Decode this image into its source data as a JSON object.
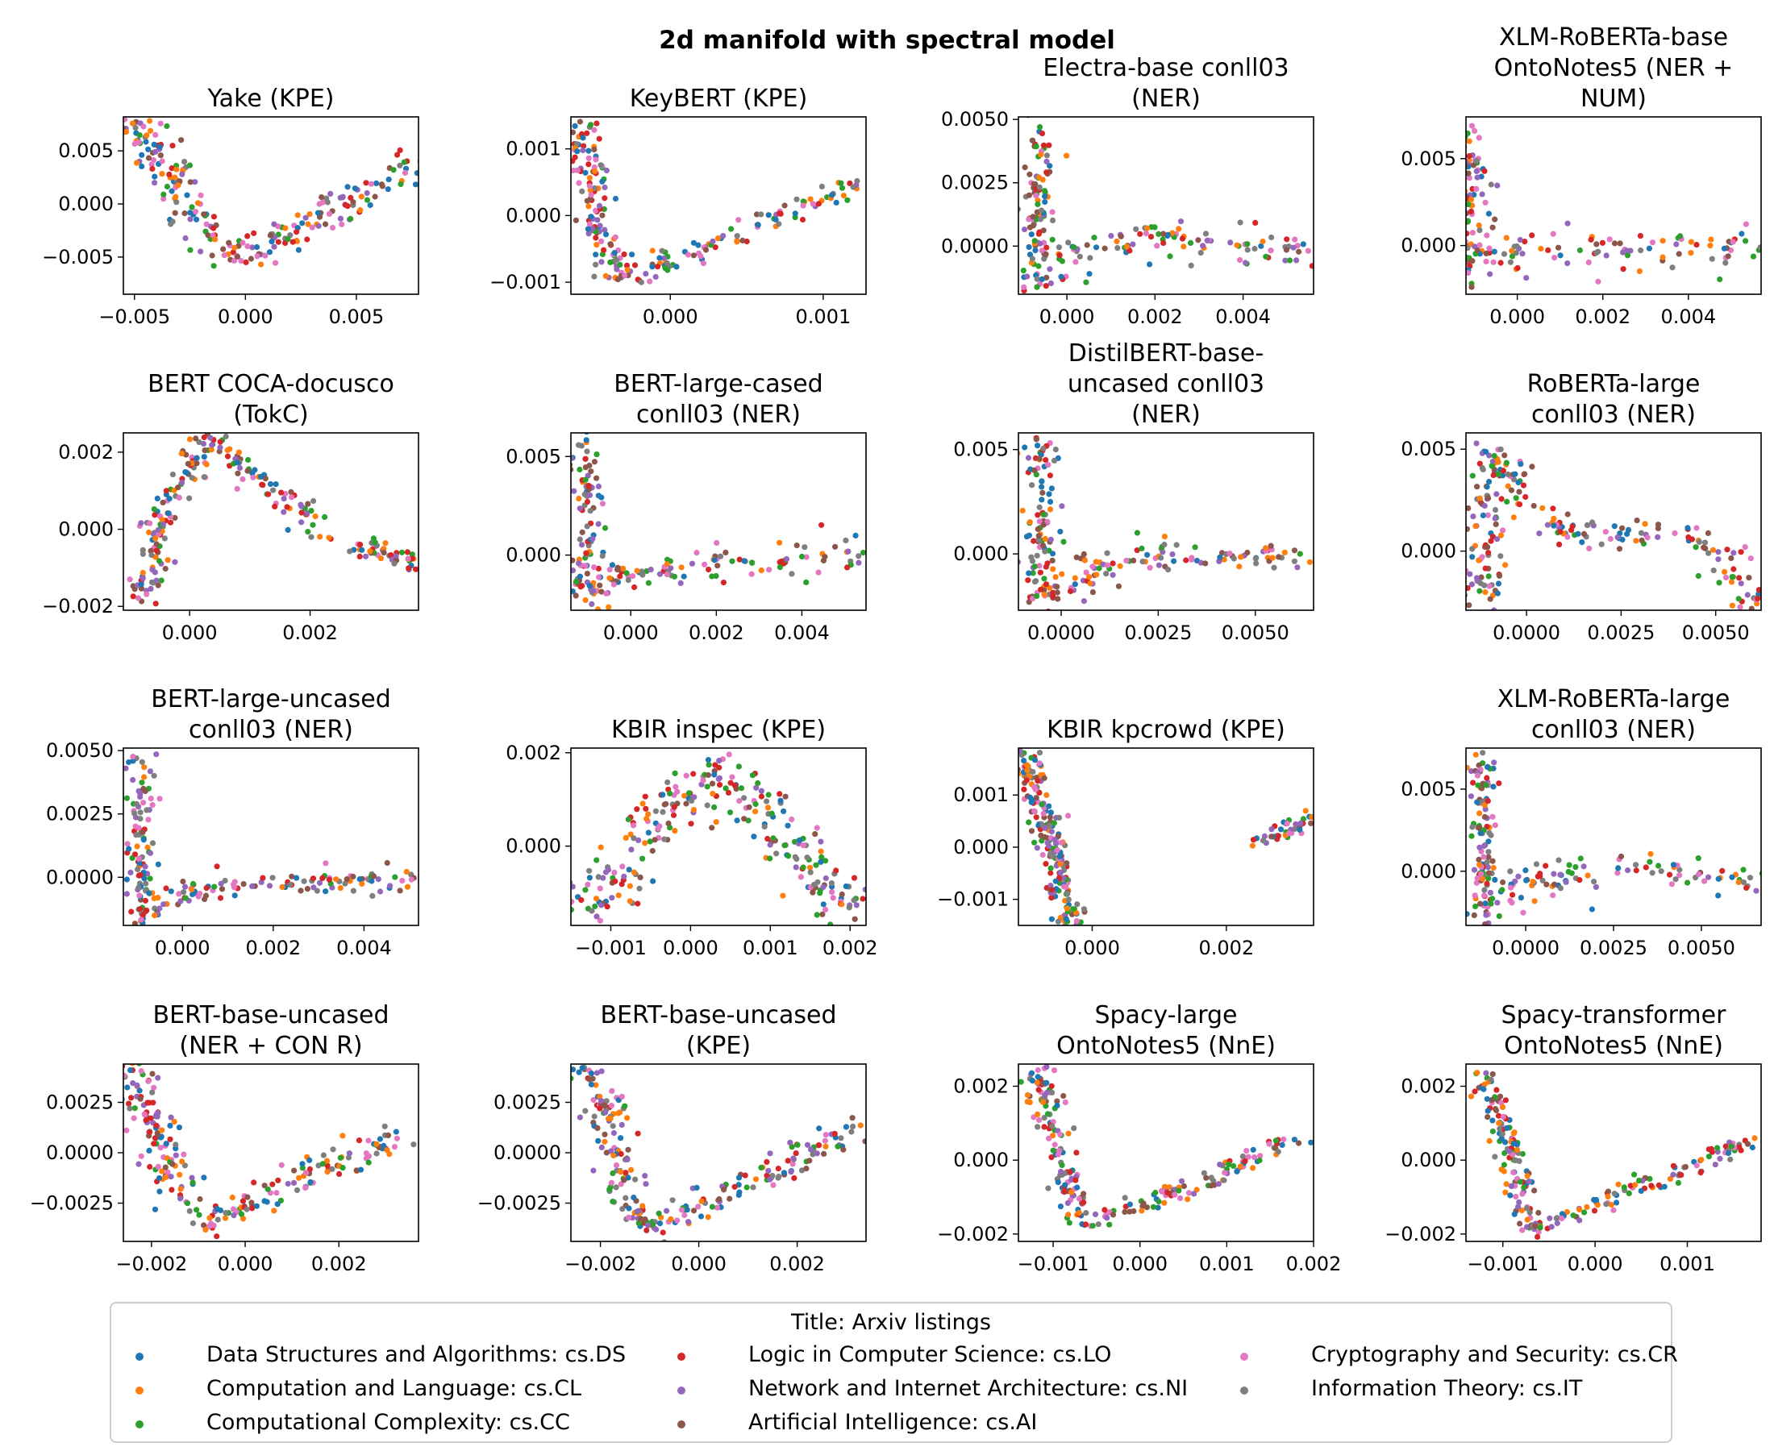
{
  "figure_title": "2d manifold with spectral model",
  "legend": {
    "title": "Title: Arxiv listings",
    "entries": [
      {
        "label": "Data Structures and Algorithms: cs.DS",
        "color": "#1f77b4"
      },
      {
        "label": "Computation and Language: cs.CL",
        "color": "#ff7f0e"
      },
      {
        "label": "Computational Complexity: cs.CC",
        "color": "#2ca02c"
      },
      {
        "label": "Logic in Computer Science: cs.LO",
        "color": "#d62728"
      },
      {
        "label": "Network and Internet Architecture: cs.NI",
        "color": "#9467bd"
      },
      {
        "label": "Artificial Intelligence: cs.AI",
        "color": "#8c564b"
      },
      {
        "label": "Cryptography and Security: cs.CR",
        "color": "#e377c2"
      },
      {
        "label": "Information Theory: cs.IT",
        "color": "#7f7f7f"
      }
    ]
  },
  "chart_data": [
    {
      "type": "scatter",
      "title": [
        "Yake (KPE)"
      ],
      "shape": "v",
      "xlim": [
        -0.0055,
        0.0078
      ],
      "ylim": [
        -0.0085,
        0.0082
      ],
      "xticks": [
        {
          "v": -0.005,
          "l": "−0.005"
        },
        {
          "v": 0.0,
          "l": "0.000"
        },
        {
          "v": 0.005,
          "l": "0.005"
        }
      ],
      "yticks": [
        {
          "v": -0.005,
          "l": "−0.005"
        },
        {
          "v": 0.0,
          "l": "0.000"
        },
        {
          "v": 0.005,
          "l": "0.005"
        }
      ],
      "path": [
        [
          -0.0052,
          0.0078
        ],
        [
          -0.0025,
          0.0
        ],
        [
          -0.0008,
          -0.0048
        ],
        [
          0.0005,
          -0.0045
        ],
        [
          0.0035,
          -0.001
        ],
        [
          0.0078,
          0.0038
        ]
      ],
      "spread": 0.0012,
      "n": 240
    },
    {
      "type": "scatter",
      "title": [
        "KeyBERT (KPE)"
      ],
      "shape": "v",
      "xlim": [
        -0.00065,
        0.00128
      ],
      "ylim": [
        -0.00118,
        0.00148
      ],
      "xticks": [
        {
          "v": 0.0,
          "l": "0.000"
        },
        {
          "v": 0.001,
          "l": "0.001"
        }
      ],
      "yticks": [
        {
          "v": -0.001,
          "l": "−0.001"
        },
        {
          "v": 0.0,
          "l": "0.000"
        },
        {
          "v": 0.001,
          "l": "0.001"
        }
      ],
      "path": [
        [
          -0.0006,
          0.0014
        ],
        [
          -0.0005,
          0.0003
        ],
        [
          -0.00035,
          -0.0009
        ],
        [
          0.0,
          -0.0007
        ],
        [
          0.0005,
          -0.0002
        ],
        [
          0.0012,
          0.0005
        ]
      ],
      "spread": 0.00012,
      "n": 220
    },
    {
      "type": "scatter",
      "title": [
        "Electra-base conll03",
        "(NER)"
      ],
      "shape": "l",
      "xlim": [
        -0.0011,
        0.0056
      ],
      "ylim": [
        -0.0019,
        0.0051
      ],
      "xticks": [
        {
          "v": 0.0,
          "l": "0.000"
        },
        {
          "v": 0.002,
          "l": "0.002"
        },
        {
          "v": 0.004,
          "l": "0.004"
        }
      ],
      "yticks": [
        {
          "v": 0.0,
          "l": "0.0000"
        },
        {
          "v": 0.0025,
          "l": "0.0025"
        },
        {
          "v": 0.005,
          "l": "0.0050"
        }
      ],
      "path": [
        [
          -0.0007,
          0.005
        ],
        [
          -0.0007,
          -0.0015
        ],
        [
          0.0,
          -0.0005
        ],
        [
          0.002,
          0.0004
        ],
        [
          0.0055,
          -0.0003
        ]
      ],
      "spread": 0.0005,
      "n": 220
    },
    {
      "type": "scatter",
      "title": [
        "XLM-RoBERTa-base",
        "OntoNotes5 (NER +",
        "NUM)"
      ],
      "shape": "l",
      "xlim": [
        -0.0012,
        0.0057
      ],
      "ylim": [
        -0.0028,
        0.0074
      ],
      "xticks": [
        {
          "v": 0.0,
          "l": "0.000"
        },
        {
          "v": 0.002,
          "l": "0.002"
        },
        {
          "v": 0.004,
          "l": "0.004"
        }
      ],
      "yticks": [
        {
          "v": 0.0,
          "l": "0.000"
        },
        {
          "v": 0.005,
          "l": "0.005"
        }
      ],
      "path": [
        [
          -0.0012,
          0.0068
        ],
        [
          -0.0011,
          -0.0018
        ],
        [
          0.0,
          -0.0005
        ],
        [
          0.002,
          0.0
        ],
        [
          0.0055,
          -0.0002
        ]
      ],
      "spread": 0.0006,
      "n": 220
    },
    {
      "type": "scatter",
      "title": [
        "BERT COCA-docusco",
        "(TokC)"
      ],
      "shape": "split",
      "xlim": [
        -0.0011,
        0.0038
      ],
      "ylim": [
        -0.0021,
        0.0025
      ],
      "xticks": [
        {
          "v": 0.0,
          "l": "0.000"
        },
        {
          "v": 0.002,
          "l": "0.002"
        }
      ],
      "yticks": [
        {
          "v": -0.002,
          "l": "−0.002"
        },
        {
          "v": 0.0,
          "l": "0.000"
        },
        {
          "v": 0.002,
          "l": "0.002"
        }
      ],
      "path": [
        [
          -0.0008,
          -0.0021
        ],
        [
          -0.0004,
          0.0005
        ],
        [
          0.0003,
          0.0024
        ],
        [
          0.0022,
          0.0
        ]
      ],
      "path2": [
        [
          0.0028,
          -0.0004
        ],
        [
          0.0038,
          -0.0009
        ]
      ],
      "spread": 0.0003,
      "n": 240
    },
    {
      "type": "scatter",
      "title": [
        "BERT-large-cased",
        "conll03 (NER)"
      ],
      "shape": "l",
      "xlim": [
        -0.0014,
        0.0055
      ],
      "ylim": [
        -0.0028,
        0.0062
      ],
      "xticks": [
        {
          "v": 0.0,
          "l": "0.000"
        },
        {
          "v": 0.002,
          "l": "0.002"
        },
        {
          "v": 0.004,
          "l": "0.004"
        }
      ],
      "yticks": [
        {
          "v": 0.0,
          "l": "0.000"
        },
        {
          "v": 0.005,
          "l": "0.005"
        }
      ],
      "path": [
        [
          -0.001,
          0.0058
        ],
        [
          -0.001,
          -0.0025
        ],
        [
          0.0,
          -0.0008
        ],
        [
          0.0025,
          -0.0004
        ],
        [
          0.0054,
          0.0002
        ]
      ],
      "spread": 0.0005,
      "n": 220
    },
    {
      "type": "scatter",
      "title": [
        "DistilBERT-base-",
        "uncased conll03",
        "(NER)"
      ],
      "shape": "l",
      "xlim": [
        -0.0011,
        0.0065
      ],
      "ylim": [
        -0.0027,
        0.0058
      ],
      "xticks": [
        {
          "v": 0.0,
          "l": "0.0000"
        },
        {
          "v": 0.0025,
          "l": "0.0025"
        },
        {
          "v": 0.005,
          "l": "0.0050"
        }
      ],
      "yticks": [
        {
          "v": 0.0,
          "l": "0.000"
        },
        {
          "v": 0.005,
          "l": "0.005"
        }
      ],
      "path": [
        [
          -0.0005,
          0.0055
        ],
        [
          -0.0005,
          -0.0022
        ],
        [
          0.001,
          -0.0005
        ],
        [
          0.003,
          0.0
        ],
        [
          0.0065,
          -0.0002
        ]
      ],
      "spread": 0.0005,
      "n": 220
    },
    {
      "type": "scatter",
      "title": [
        "RoBERTa-large",
        "conll03 (NER)"
      ],
      "shape": "m",
      "xlim": [
        -0.0016,
        0.0062
      ],
      "ylim": [
        -0.0029,
        0.0058
      ],
      "xticks": [
        {
          "v": 0.0,
          "l": "0.0000"
        },
        {
          "v": 0.0025,
          "l": "0.0025"
        },
        {
          "v": 0.005,
          "l": "0.0050"
        }
      ],
      "yticks": [
        {
          "v": 0.0,
          "l": "0.000"
        },
        {
          "v": 0.005,
          "l": "0.005"
        }
      ],
      "path": [
        [
          -0.0012,
          -0.0027
        ],
        [
          -0.001,
          0.005
        ],
        [
          0.001,
          0.0008
        ],
        [
          0.0045,
          0.0008
        ],
        [
          0.0062,
          -0.0027
        ]
      ],
      "spread": 0.0006,
      "n": 240
    },
    {
      "type": "scatter",
      "title": [
        "BERT-large-uncased",
        "conll03 (NER)"
      ],
      "shape": "l",
      "xlim": [
        -0.0013,
        0.0052
      ],
      "ylim": [
        -0.0019,
        0.0051
      ],
      "xticks": [
        {
          "v": 0.0,
          "l": "0.000"
        },
        {
          "v": 0.002,
          "l": "0.002"
        },
        {
          "v": 0.004,
          "l": "0.004"
        }
      ],
      "yticks": [
        {
          "v": 0.0,
          "l": "0.0000"
        },
        {
          "v": 0.0025,
          "l": "0.0025"
        },
        {
          "v": 0.005,
          "l": "0.0050"
        }
      ],
      "path": [
        [
          -0.0009,
          0.0048
        ],
        [
          -0.0009,
          -0.0018
        ],
        [
          0.0,
          -0.0005
        ],
        [
          0.002,
          -0.0003
        ],
        [
          0.0052,
          0.0
        ]
      ],
      "spread": 0.0004,
      "n": 220
    },
    {
      "type": "scatter",
      "title": [
        "KBIR inspec (KPE)"
      ],
      "shape": "a",
      "xlim": [
        -0.0015,
        0.0022
      ],
      "ylim": [
        -0.0017,
        0.0021
      ],
      "xticks": [
        {
          "v": -0.001,
          "l": "−0.001"
        },
        {
          "v": 0.0,
          "l": "0.000"
        },
        {
          "v": 0.001,
          "l": "0.001"
        },
        {
          "v": 0.002,
          "l": "0.002"
        }
      ],
      "yticks": [
        {
          "v": 0.0,
          "l": "0.000"
        },
        {
          "v": 0.002,
          "l": "0.002"
        }
      ],
      "path": [
        [
          -0.0014,
          -0.0016
        ],
        [
          -0.0005,
          0.0004
        ],
        [
          0.0003,
          0.0017
        ],
        [
          0.001,
          0.0005
        ],
        [
          0.0021,
          -0.0016
        ]
      ],
      "spread": 0.0004,
      "n": 260
    },
    {
      "type": "scatter",
      "title": [
        "KBIR kpcrowd (KPE)"
      ],
      "shape": "split",
      "xlim": [
        -0.0011,
        0.0033
      ],
      "ylim": [
        -0.0015,
        0.0019
      ],
      "xticks": [
        {
          "v": 0.0,
          "l": "0.000"
        },
        {
          "v": 0.002,
          "l": "0.002"
        }
      ],
      "yticks": [
        {
          "v": -0.001,
          "l": "−0.001"
        },
        {
          "v": 0.0,
          "l": "0.000"
        },
        {
          "v": 0.001,
          "l": "0.001"
        }
      ],
      "path": [
        [
          -0.001,
          0.0018
        ],
        [
          -0.0006,
          0.0
        ],
        [
          -0.0003,
          -0.0015
        ]
      ],
      "path2": [
        [
          0.0025,
          0.0001
        ],
        [
          0.0033,
          0.0006
        ]
      ],
      "spread": 0.00022,
      "n": 240
    },
    {
      "type": "scatter",
      "title": [
        "XLM-RoBERTa-large",
        "conll03 (NER)"
      ],
      "shape": "l",
      "xlim": [
        -0.0017,
        0.0067
      ],
      "ylim": [
        -0.0033,
        0.0075
      ],
      "xticks": [
        {
          "v": 0.0,
          "l": "0.0000"
        },
        {
          "v": 0.0025,
          "l": "0.0025"
        },
        {
          "v": 0.005,
          "l": "0.0050"
        }
      ],
      "yticks": [
        {
          "v": 0.0,
          "l": "0.000"
        },
        {
          "v": 0.005,
          "l": "0.005"
        }
      ],
      "path": [
        [
          -0.0012,
          0.007
        ],
        [
          -0.0012,
          -0.003
        ],
        [
          0.0,
          -0.0005
        ],
        [
          0.003,
          0.0
        ],
        [
          0.0067,
          -0.0007
        ]
      ],
      "spread": 0.0006,
      "n": 220
    },
    {
      "type": "scatter",
      "title": [
        "BERT-base-uncased",
        "(NER + CON R)"
      ],
      "shape": "v",
      "xlim": [
        -0.0026,
        0.0037
      ],
      "ylim": [
        -0.0044,
        0.0044
      ],
      "xticks": [
        {
          "v": -0.002,
          "l": "−0.002"
        },
        {
          "v": 0.0,
          "l": "0.000"
        },
        {
          "v": 0.002,
          "l": "0.002"
        }
      ],
      "yticks": [
        {
          "v": -0.0025,
          "l": "−0.0025"
        },
        {
          "v": 0.0,
          "l": "0.0000"
        },
        {
          "v": 0.0025,
          "l": "0.0025"
        }
      ],
      "path": [
        [
          -0.0025,
          0.0043
        ],
        [
          -0.0015,
          -0.0015
        ],
        [
          -0.0008,
          -0.0035
        ],
        [
          0.0005,
          -0.002
        ],
        [
          0.0034,
          0.001
        ]
      ],
      "spread": 0.0005,
      "n": 240
    },
    {
      "type": "scatter",
      "title": [
        "BERT-base-uncased",
        "(KPE)"
      ],
      "shape": "v",
      "xlim": [
        -0.0026,
        0.0034
      ],
      "ylim": [
        -0.0044,
        0.0044
      ],
      "xticks": [
        {
          "v": -0.002,
          "l": "−0.002"
        },
        {
          "v": 0.0,
          "l": "0.000"
        },
        {
          "v": 0.002,
          "l": "0.002"
        }
      ],
      "yticks": [
        {
          "v": -0.0025,
          "l": "−0.0025"
        },
        {
          "v": 0.0,
          "l": "0.0000"
        },
        {
          "v": 0.0025,
          "l": "0.0025"
        }
      ],
      "path": [
        [
          -0.0022,
          0.0042
        ],
        [
          -0.0015,
          -0.0015
        ],
        [
          -0.001,
          -0.0038
        ],
        [
          0.0005,
          -0.002
        ],
        [
          0.003,
          0.001
        ]
      ],
      "spread": 0.0005,
      "n": 240
    },
    {
      "type": "scatter",
      "title": [
        "Spacy-large",
        "OntoNotes5 (NnE)"
      ],
      "shape": "v",
      "xlim": [
        -0.0014,
        0.002
      ],
      "ylim": [
        -0.0022,
        0.0026
      ],
      "xticks": [
        {
          "v": -0.001,
          "l": "−0.001"
        },
        {
          "v": 0.0,
          "l": "0.000"
        },
        {
          "v": 0.001,
          "l": "0.001"
        },
        {
          "v": 0.002,
          "l": "0.002"
        }
      ],
      "yticks": [
        {
          "v": -0.002,
          "l": "−0.002"
        },
        {
          "v": 0.0,
          "l": "0.000"
        },
        {
          "v": 0.002,
          "l": "0.002"
        }
      ],
      "path": [
        [
          -0.0012,
          0.0025
        ],
        [
          -0.0009,
          0.0
        ],
        [
          -0.0007,
          -0.0018
        ],
        [
          0.0,
          -0.0013
        ],
        [
          0.0018,
          0.0006
        ]
      ],
      "spread": 0.00018,
      "n": 230
    },
    {
      "type": "scatter",
      "title": [
        "Spacy-transformer",
        "OntoNotes5 (NnE)"
      ],
      "shape": "v",
      "xlim": [
        -0.0014,
        0.0018
      ],
      "ylim": [
        -0.0022,
        0.0026
      ],
      "xticks": [
        {
          "v": -0.001,
          "l": "−0.001"
        },
        {
          "v": 0.0,
          "l": "0.000"
        },
        {
          "v": 0.001,
          "l": "0.001"
        }
      ],
      "yticks": [
        {
          "v": -0.002,
          "l": "−0.002"
        },
        {
          "v": 0.0,
          "l": "0.000"
        },
        {
          "v": 0.002,
          "l": "0.002"
        }
      ],
      "path": [
        [
          -0.0012,
          0.0025
        ],
        [
          -0.0009,
          0.0
        ],
        [
          -0.0007,
          -0.0019
        ],
        [
          0.0,
          -0.0012
        ],
        [
          0.0017,
          0.0005
        ]
      ],
      "spread": 0.00018,
      "n": 230
    }
  ]
}
